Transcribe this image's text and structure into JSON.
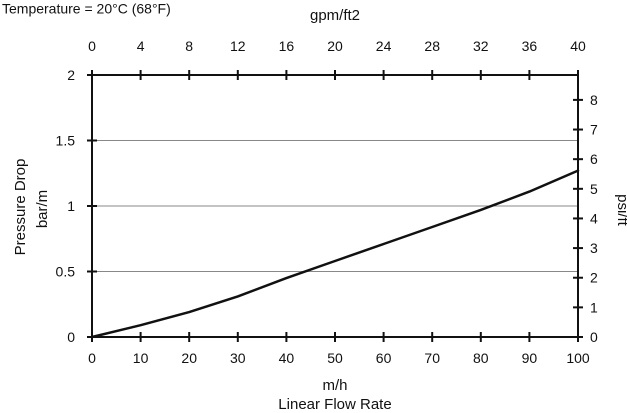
{
  "chart_data": {
    "type": "line",
    "note": "Temperature = 20°C (68°F)",
    "x": [
      0,
      10,
      20,
      30,
      40,
      50,
      60,
      70,
      80,
      90,
      100
    ],
    "series": [
      {
        "values": [
          0,
          0.09,
          0.19,
          0.31,
          0.45,
          0.58,
          0.71,
          0.84,
          0.97,
          1.11,
          1.27
        ]
      }
    ],
    "x_axis_bottom": {
      "label_unit": "m/h",
      "label": "Linear Flow Rate",
      "ticks": [
        "0",
        "10",
        "20",
        "30",
        "40",
        "50",
        "60",
        "70",
        "80",
        "90",
        "100"
      ],
      "range": [
        0,
        100
      ]
    },
    "x_axis_top": {
      "label": "gpm/ft2",
      "ticks": [
        "0",
        "4",
        "8",
        "12",
        "16",
        "20",
        "24",
        "28",
        "32",
        "36",
        "40"
      ],
      "range": [
        0,
        40
      ]
    },
    "y_axis_left": {
      "label": "Pressure Drop",
      "label_unit": "bar/m",
      "ticks": [
        "0",
        "0.5",
        "1",
        "1.5",
        "2"
      ],
      "range": [
        0,
        2
      ]
    },
    "y_axis_right": {
      "label": "psi/ft",
      "ticks": [
        "0",
        "1",
        "2",
        "3",
        "4",
        "5",
        "6",
        "7",
        "8"
      ],
      "range_note": "1 bar/m = 4.42 psi/ft"
    },
    "grid": "horizontal",
    "colors": {
      "line": "#111111",
      "grid": "#888888",
      "axis": "#111111"
    }
  }
}
